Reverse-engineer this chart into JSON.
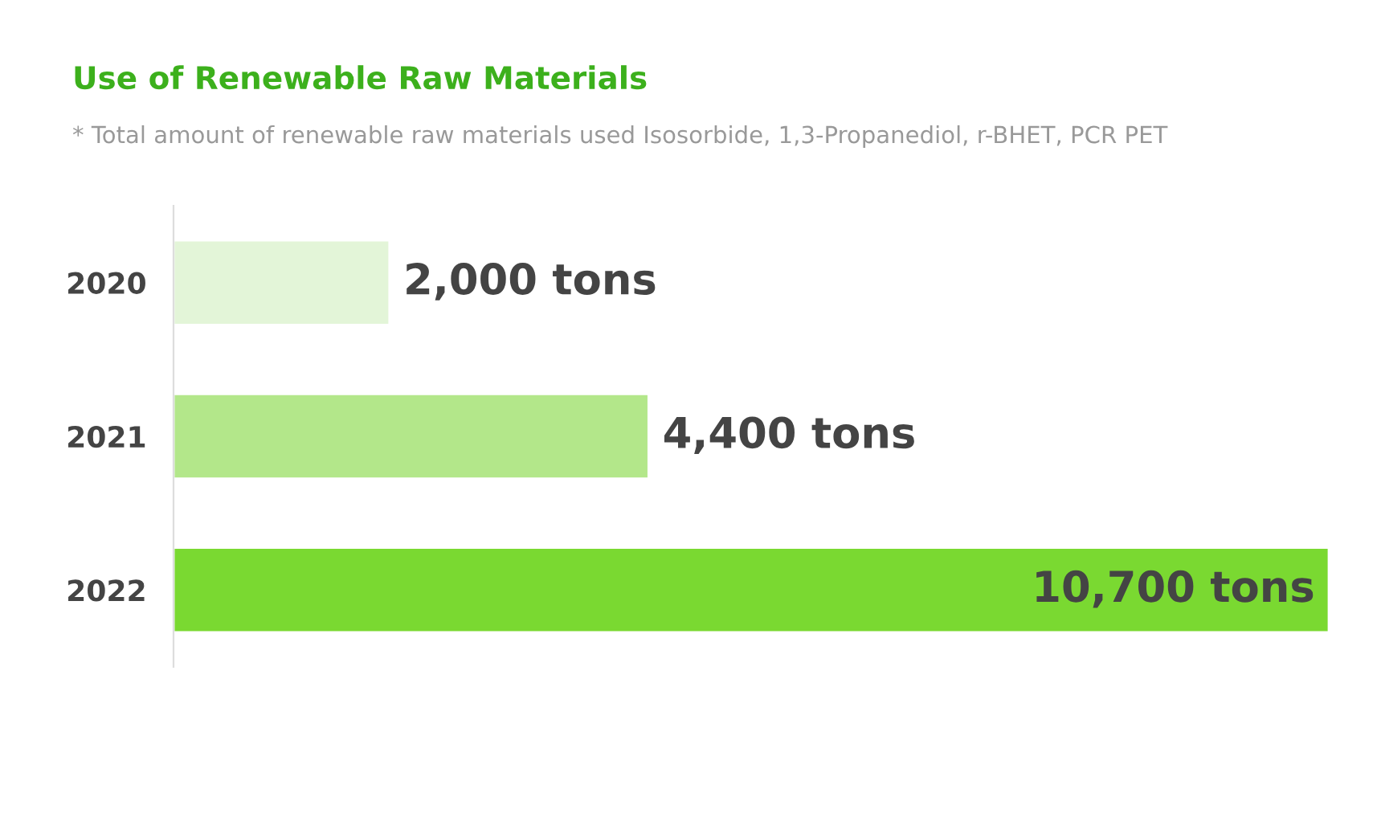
{
  "chart_data": {
    "type": "bar",
    "orientation": "horizontal",
    "title": "Use of Renewable Raw Materials",
    "subtitle": "* Total amount of renewable raw materials used Isosorbide, 1,3-Propanediol, r-BHET, PCR PET",
    "categories": [
      "2020",
      "2021",
      "2022"
    ],
    "values": [
      2000,
      4400,
      10700
    ],
    "colors": [
      "#e3f5d8",
      "#b3e78a",
      "#7ad931"
    ],
    "value_labels": [
      "2,000 tons",
      "4,400 tons",
      "10,700 tons"
    ],
    "grid": false,
    "legend": false
  }
}
